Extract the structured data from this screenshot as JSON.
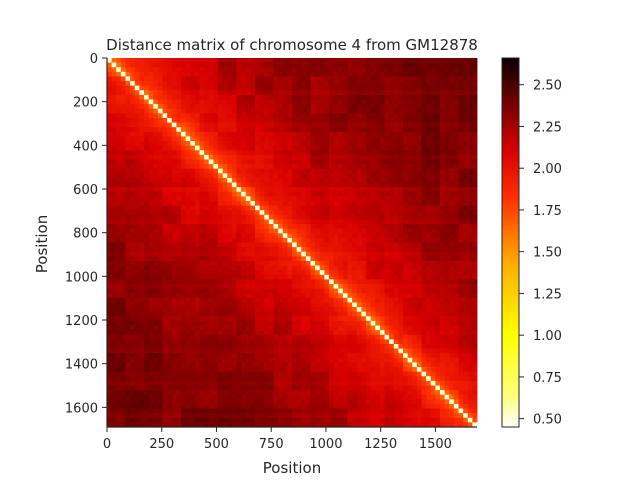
{
  "chart_data": {
    "type": "heatmap",
    "title": "Distance matrix of chromosome 4 from GM12878",
    "xlabel": "Position",
    "ylabel": "Position",
    "x_range": [
      0,
      1690
    ],
    "y_range": [
      0,
      1690
    ],
    "y_inverted": true,
    "x_ticks": [
      0,
      250,
      500,
      750,
      1000,
      1250,
      1500
    ],
    "y_ticks": [
      0,
      200,
      400,
      600,
      800,
      1000,
      1200,
      1400,
      1600
    ],
    "x_tick_labels": [
      "0",
      "250",
      "500",
      "750",
      "1000",
      "1250",
      "1500"
    ],
    "y_tick_labels": [
      "0",
      "200",
      "400",
      "600",
      "800",
      "1000",
      "1200",
      "1400",
      "1600"
    ],
    "colormap": "hot_r",
    "color_range": [
      0.45,
      2.66
    ],
    "colorbar_ticks": [
      0.5,
      0.75,
      1.0,
      1.25,
      1.5,
      1.75,
      2.0,
      2.25,
      2.5
    ],
    "colorbar_tick_labels": [
      "0.50",
      "0.75",
      "1.00",
      "1.25",
      "1.50",
      "1.75",
      "2.00",
      "2.25",
      "2.50"
    ],
    "diagonal_value": 0.5,
    "typical_near_diagonal": 1.9,
    "typical_far_value": 2.4,
    "grid": false
  }
}
